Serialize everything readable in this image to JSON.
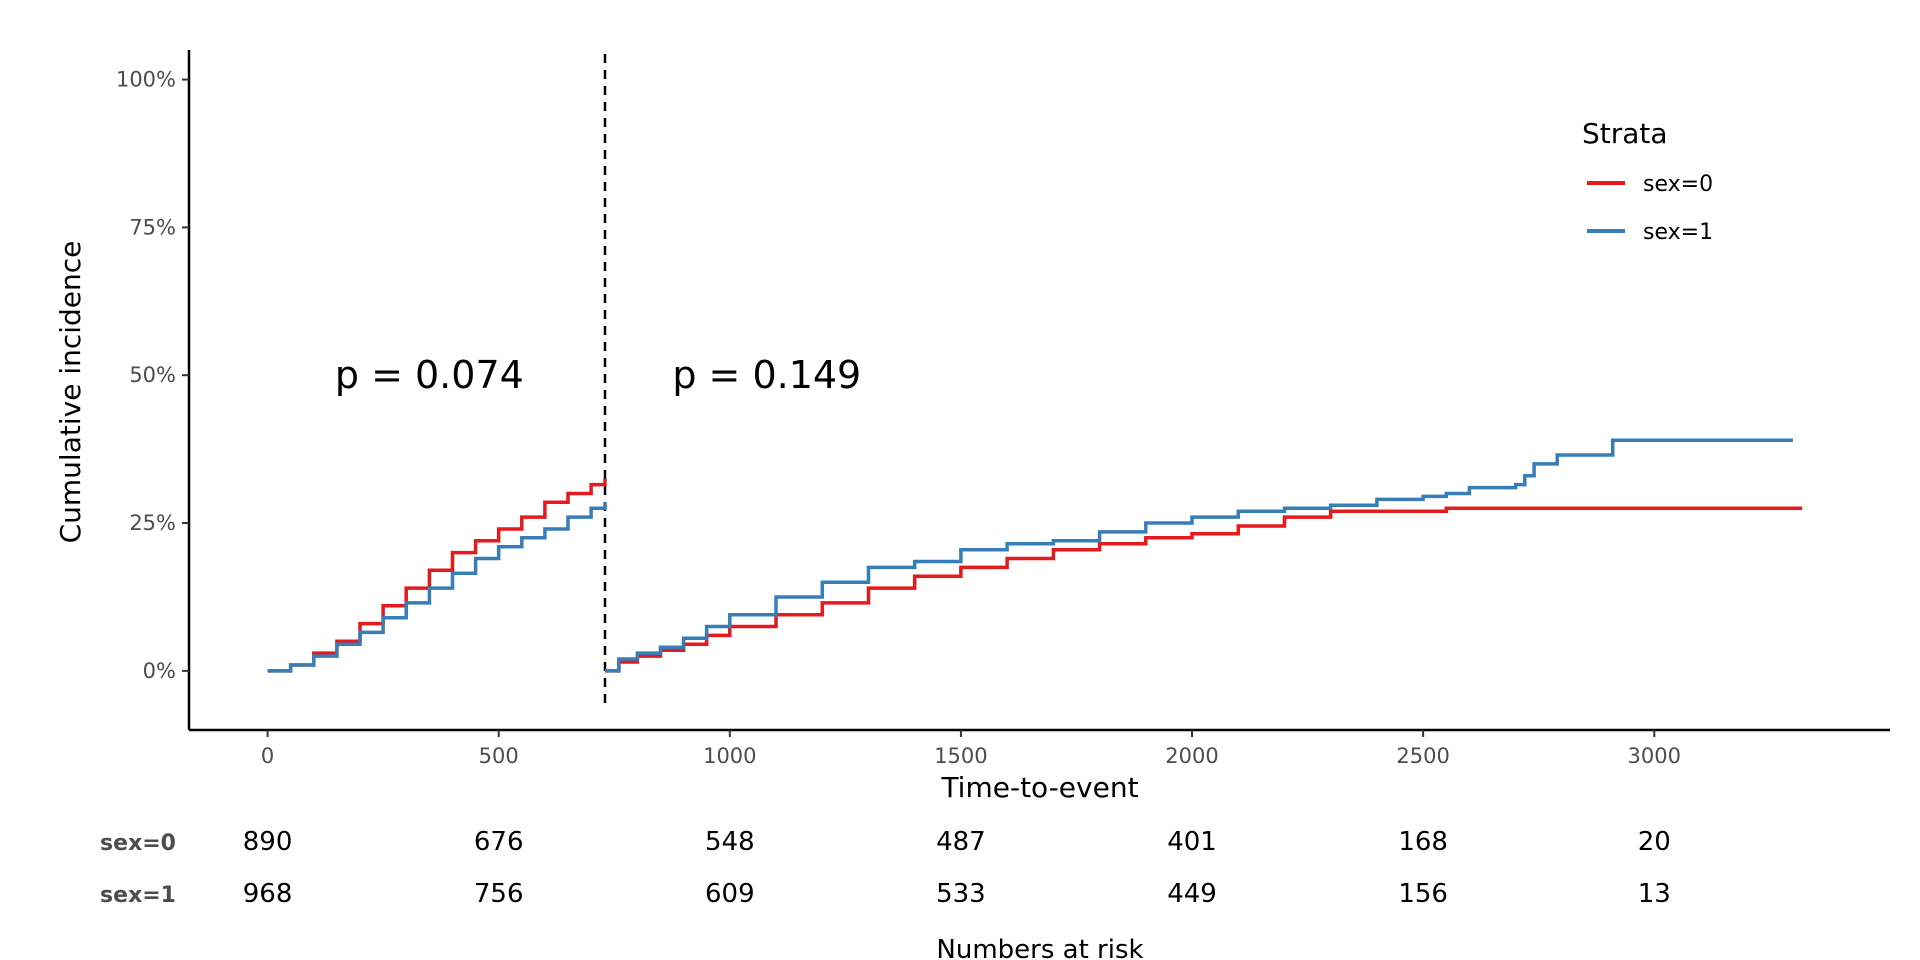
{
  "chart_data": {
    "type": "line",
    "subtype": "step",
    "ylabel": "Cumulative incidence",
    "xlabel": "Time-to-event",
    "xlim": [
      -170,
      3510
    ],
    "ylim": [
      -0.1,
      1.05
    ],
    "x_ticks": [
      0,
      500,
      1000,
      1500,
      2000,
      2500,
      3000
    ],
    "y_ticks": [
      0,
      0.25,
      0.5,
      0.75,
      1.0
    ],
    "y_tick_labels": [
      "0%",
      "25%",
      "50%",
      "75%",
      "100%"
    ],
    "grid": false,
    "cutpoint_x": 730,
    "annotations": [
      {
        "text": "p = 0.074",
        "x": 350,
        "y": 0.5
      },
      {
        "text": "p = 0.149",
        "x": 1080,
        "y": 0.5
      }
    ],
    "legend": {
      "title": "Strata",
      "position": "top-right"
    },
    "series": [
      {
        "name": "sex=0",
        "color": "#e41a1c",
        "segments": [
          [
            [
              0,
              0
            ],
            [
              50,
              0.01
            ],
            [
              100,
              0.03
            ],
            [
              150,
              0.05
            ],
            [
              200,
              0.08
            ],
            [
              250,
              0.11
            ],
            [
              300,
              0.14
            ],
            [
              350,
              0.17
            ],
            [
              400,
              0.2
            ],
            [
              450,
              0.22
            ],
            [
              500,
              0.24
            ],
            [
              550,
              0.26
            ],
            [
              600,
              0.285
            ],
            [
              650,
              0.3
            ],
            [
              700,
              0.315
            ],
            [
              730,
              0.325
            ]
          ],
          [
            [
              730,
              0
            ],
            [
              760,
              0.015
            ],
            [
              800,
              0.025
            ],
            [
              850,
              0.035
            ],
            [
              900,
              0.045
            ],
            [
              950,
              0.06
            ],
            [
              1000,
              0.075
            ],
            [
              1100,
              0.095
            ],
            [
              1200,
              0.115
            ],
            [
              1300,
              0.14
            ],
            [
              1400,
              0.16
            ],
            [
              1500,
              0.175
            ],
            [
              1600,
              0.19
            ],
            [
              1700,
              0.205
            ],
            [
              1800,
              0.215
            ],
            [
              1900,
              0.225
            ],
            [
              2000,
              0.232
            ],
            [
              2100,
              0.245
            ],
            [
              2200,
              0.26
            ],
            [
              2300,
              0.27
            ],
            [
              2550,
              0.27
            ],
            [
              2550,
              0.275
            ],
            [
              3320,
              0.275
            ]
          ]
        ]
      },
      {
        "name": "sex=1",
        "color": "#377eb8",
        "segments": [
          [
            [
              0,
              0
            ],
            [
              50,
              0.01
            ],
            [
              100,
              0.025
            ],
            [
              150,
              0.045
            ],
            [
              200,
              0.065
            ],
            [
              250,
              0.09
            ],
            [
              300,
              0.115
            ],
            [
              350,
              0.14
            ],
            [
              400,
              0.165
            ],
            [
              450,
              0.19
            ],
            [
              500,
              0.21
            ],
            [
              550,
              0.225
            ],
            [
              600,
              0.24
            ],
            [
              650,
              0.26
            ],
            [
              700,
              0.275
            ],
            [
              730,
              0.285
            ]
          ],
          [
            [
              730,
              0
            ],
            [
              760,
              0.02
            ],
            [
              800,
              0.03
            ],
            [
              850,
              0.04
            ],
            [
              900,
              0.055
            ],
            [
              950,
              0.075
            ],
            [
              1000,
              0.095
            ],
            [
              1100,
              0.125
            ],
            [
              1200,
              0.15
            ],
            [
              1300,
              0.175
            ],
            [
              1400,
              0.185
            ],
            [
              1500,
              0.205
            ],
            [
              1600,
              0.215
            ],
            [
              1700,
              0.22
            ],
            [
              1800,
              0.235
            ],
            [
              1900,
              0.25
            ],
            [
              2000,
              0.26
            ],
            [
              2100,
              0.27
            ],
            [
              2200,
              0.275
            ],
            [
              2300,
              0.28
            ],
            [
              2400,
              0.29
            ],
            [
              2500,
              0.295
            ],
            [
              2550,
              0.3
            ],
            [
              2600,
              0.31
            ],
            [
              2650,
              0.31
            ],
            [
              2700,
              0.315
            ],
            [
              2720,
              0.33
            ],
            [
              2740,
              0.35
            ],
            [
              2790,
              0.365
            ],
            [
              2910,
              0.39
            ],
            [
              3300,
              0.39
            ]
          ]
        ]
      }
    ],
    "risk_table": {
      "title": "Numbers at risk",
      "times": [
        0,
        500,
        1000,
        1500,
        2000,
        2500,
        3000
      ],
      "rows": [
        {
          "name": "sex=0",
          "values": [
            890,
            676,
            548,
            487,
            401,
            168,
            20
          ]
        },
        {
          "name": "sex=1",
          "values": [
            968,
            756,
            609,
            533,
            449,
            156,
            13
          ]
        }
      ]
    }
  }
}
